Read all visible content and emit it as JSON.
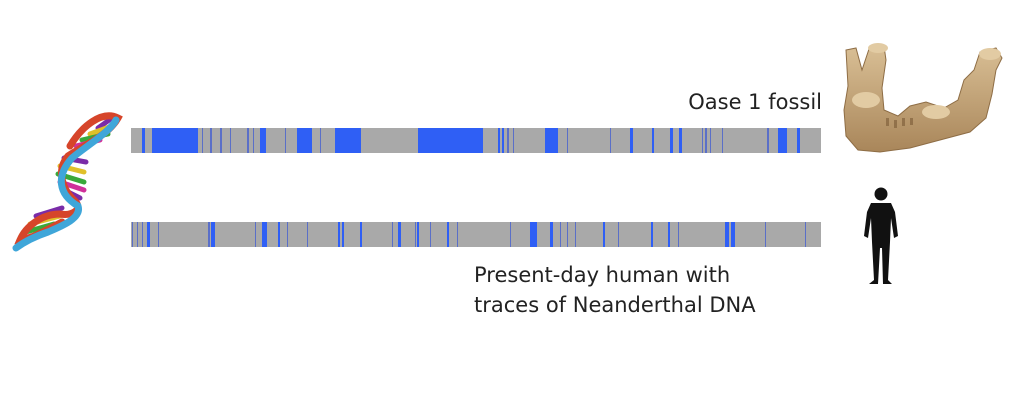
{
  "labels": {
    "top": "Oase 1 fossil",
    "bottom_line1": "Present-day human with",
    "bottom_line2": "traces of Neanderthal DNA"
  },
  "icons": {
    "dna": "dna-helix-icon",
    "fossil": "fossil-jawbone-image",
    "human": "human-silhouette-icon"
  },
  "colors": {
    "bar_background": "#a9a9a9",
    "neanderthal_segment": "#2f5ff5",
    "faint_segment": "#5a6fc8"
  },
  "genomes": [
    {
      "name": "Oase 1 fossil",
      "bar_x_range": [
        131,
        821
      ],
      "segments": [
        [
          142,
          3,
          1
        ],
        [
          152,
          46,
          1
        ],
        [
          202,
          1,
          0
        ],
        [
          210,
          2,
          0
        ],
        [
          220,
          2,
          0
        ],
        [
          230,
          1,
          0
        ],
        [
          247,
          2,
          0
        ],
        [
          253,
          1,
          0
        ],
        [
          260,
          6,
          1
        ],
        [
          285,
          1,
          0
        ],
        [
          297,
          15,
          1
        ],
        [
          320,
          1,
          0
        ],
        [
          335,
          26,
          1
        ],
        [
          418,
          65,
          1
        ],
        [
          498,
          2,
          1
        ],
        [
          502,
          2,
          1
        ],
        [
          507,
          2,
          0
        ],
        [
          513,
          1,
          0
        ],
        [
          545,
          13,
          1
        ],
        [
          567,
          1,
          0
        ],
        [
          610,
          1,
          0
        ],
        [
          630,
          3,
          1
        ],
        [
          652,
          2,
          1
        ],
        [
          670,
          3,
          1
        ],
        [
          679,
          3,
          1
        ],
        [
          702,
          1,
          0
        ],
        [
          705,
          2,
          0
        ],
        [
          710,
          1,
          0
        ],
        [
          722,
          1,
          0
        ],
        [
          767,
          2,
          0
        ],
        [
          778,
          9,
          1
        ],
        [
          797,
          3,
          1
        ]
      ]
    },
    {
      "name": "Present-day human",
      "bar_x_range": [
        131,
        821
      ],
      "segments": [
        [
          132,
          1,
          0
        ],
        [
          137,
          1,
          0
        ],
        [
          142,
          1,
          0
        ],
        [
          147,
          3,
          1
        ],
        [
          158,
          1,
          0
        ],
        [
          208,
          2,
          0
        ],
        [
          211,
          4,
          1
        ],
        [
          255,
          1,
          0
        ],
        [
          262,
          5,
          1
        ],
        [
          278,
          2,
          1
        ],
        [
          287,
          1,
          0
        ],
        [
          307,
          1,
          0
        ],
        [
          338,
          2,
          1
        ],
        [
          342,
          2,
          1
        ],
        [
          360,
          2,
          1
        ],
        [
          392,
          1,
          0
        ],
        [
          398,
          3,
          1
        ],
        [
          415,
          1,
          0
        ],
        [
          417,
          2,
          1
        ],
        [
          430,
          1,
          0
        ],
        [
          447,
          2,
          1
        ],
        [
          457,
          1,
          0
        ],
        [
          510,
          1,
          0
        ],
        [
          530,
          7,
          1
        ],
        [
          550,
          3,
          1
        ],
        [
          560,
          1,
          0
        ],
        [
          567,
          1,
          0
        ],
        [
          575,
          1,
          0
        ],
        [
          603,
          2,
          1
        ],
        [
          618,
          1,
          0
        ],
        [
          651,
          2,
          1
        ],
        [
          668,
          2,
          1
        ],
        [
          678,
          1,
          0
        ],
        [
          725,
          4,
          1
        ],
        [
          731,
          4,
          1
        ],
        [
          765,
          1,
          0
        ],
        [
          805,
          1,
          0
        ]
      ]
    }
  ]
}
